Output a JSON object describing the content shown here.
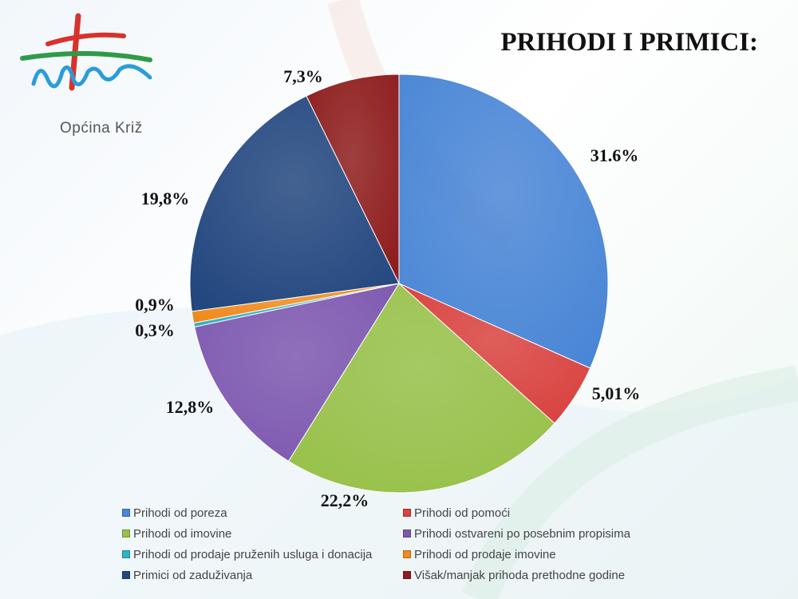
{
  "logo": {
    "text": "Općina Križ"
  },
  "slide": {
    "title": "PRIHODI I PRIMICI:"
  },
  "chart_data": {
    "type": "pie",
    "title": "",
    "series": [
      {
        "name": "Prihodi od poreza",
        "value": 31.6,
        "label": "31.6%",
        "color": "#4a86d6"
      },
      {
        "name": "Prihodi od pomoći",
        "value": 5.01,
        "label": "5,01%",
        "color": "#d9423f"
      },
      {
        "name": "Prihodi od imovine",
        "value": 22.2,
        "label": "22,2%",
        "color": "#98c14a"
      },
      {
        "name": "Prihodi ostvareni po posebnim propisima",
        "value": 12.8,
        "label": "12,8%",
        "color": "#7e58b0"
      },
      {
        "name": "Prihodi od prodaje pruženih usluga i donacija",
        "value": 0.3,
        "label": "0,3%",
        "color": "#2eb3c9"
      },
      {
        "name": "Prihodi od prodaje imovine",
        "value": 0.9,
        "label": "0,9%",
        "color": "#f08a1c"
      },
      {
        "name": "Primici od zaduživanja",
        "value": 19.8,
        "label": "19,8%",
        "color": "#23477f"
      },
      {
        "name": "Višak/manjak prihoda prethodne godine",
        "value": 7.3,
        "label": "7,3%",
        "color": "#8e1d1d"
      }
    ],
    "legend_position": "bottom"
  }
}
